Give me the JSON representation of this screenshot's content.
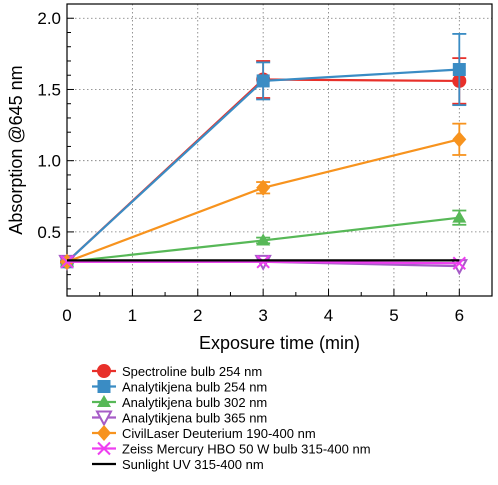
{
  "chart_data": {
    "type": "line",
    "xlabel": "Exposure time (min)",
    "ylabel": "Absorption @645 nm",
    "xlim": [
      0,
      6.5
    ],
    "ylim": [
      0.05,
      2.1
    ],
    "xticks": [
      "0",
      "1",
      "2",
      "3",
      "4",
      "5",
      "6"
    ],
    "yticks": [
      "0.5",
      "1.0",
      "1.5",
      "2.0"
    ],
    "grid": "dotted",
    "legend_position": "below",
    "x": [
      0,
      3,
      6
    ],
    "series": [
      {
        "name": "Spectroline bulb 254 nm",
        "color": "#e8302a",
        "marker": "circle",
        "values": [
          0.29,
          1.57,
          1.56
        ],
        "errors": [
          0,
          0.13,
          0.16
        ]
      },
      {
        "name": "Analytikjena bulb 254 nm",
        "color": "#3a8cc4",
        "marker": "square",
        "values": [
          0.29,
          1.56,
          1.64
        ],
        "errors": [
          0,
          0.13,
          0.25
        ]
      },
      {
        "name": "Analytikjena bulb 302 nm",
        "color": "#57b857",
        "marker": "triangle",
        "values": [
          0.29,
          0.44,
          0.6
        ],
        "errors": [
          0,
          0.02,
          0.05
        ]
      },
      {
        "name": "Analytikjena bulb 365 nm",
        "color": "#a65cc7",
        "marker": "triangle-down-open",
        "values": [
          0.29,
          0.29,
          0.26
        ],
        "errors": [
          0,
          0,
          0
        ]
      },
      {
        "name": "CivilLaser Deuterium 190-400 nm",
        "color": "#f7931e",
        "marker": "diamond",
        "values": [
          0.29,
          0.81,
          1.15
        ],
        "errors": [
          0,
          0.04,
          0.11
        ]
      },
      {
        "name": "Zeiss Mercury HBO 50 W bulb 315-400 nm",
        "color": "#ee3ff0",
        "marker": "x",
        "values": [
          0.29,
          0.29,
          0.28
        ],
        "errors": [
          0,
          0,
          0
        ]
      },
      {
        "name": "Sunlight UV 315-400 nm",
        "color": "#000000",
        "marker": "none",
        "values": [
          0.3,
          0.3,
          0.3
        ],
        "errors": [
          0,
          0,
          0
        ]
      }
    ]
  }
}
